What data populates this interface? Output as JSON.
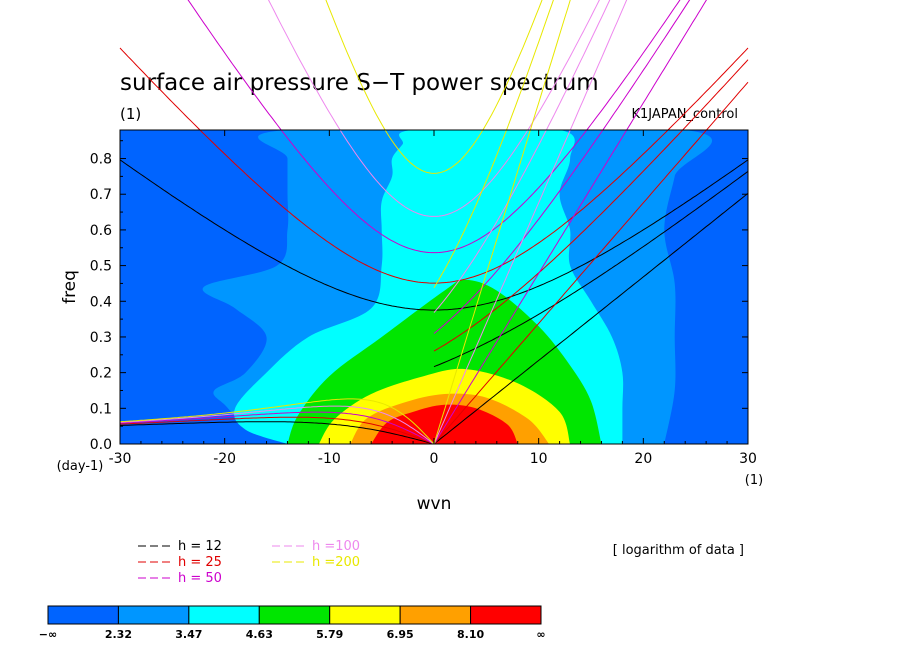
{
  "chart_data": {
    "type": "heatmap",
    "title": "surface air pressure S−T power spectrum",
    "subtitle_left": "(1)",
    "subtitle_right": "K1JAPAN_control",
    "xlabel": "wvn",
    "ylabel": "freq",
    "x_unit": "(1)",
    "y_unit": "(day-1)",
    "xlim": [
      -30,
      30
    ],
    "ylim": [
      0,
      0.88
    ],
    "xticks": [
      "-30",
      "-20",
      "-10",
      "0",
      "10",
      "20",
      "30"
    ],
    "yticks": [
      "0.0",
      "0.1",
      "0.2",
      "0.3",
      "0.4",
      "0.5",
      "0.6",
      "0.7",
      "0.8"
    ],
    "note": "[ logarithm of data ]",
    "dispersion_curves": [
      {
        "label": "h = 12",
        "h": 12,
        "color": "#000000"
      },
      {
        "label": "h = 25",
        "h": 25,
        "color": "#e00000"
      },
      {
        "label": "h = 50",
        "h": 50,
        "color": "#cc00cc"
      },
      {
        "label": "h =100",
        "h": 100,
        "color": "#ee88ee"
      },
      {
        "label": "h =200",
        "h": 200,
        "color": "#e8e800"
      }
    ],
    "colorbar": {
      "colors": [
        "#0064ff",
        "#0096ff",
        "#00ffff",
        "#00e600",
        "#ffff00",
        "#ffa000",
        "#ff0000"
      ],
      "labels": [
        "−∞",
        "2.32",
        "3.47",
        "4.63",
        "5.79",
        "6.95",
        "8.10",
        "∞"
      ]
    },
    "contour_levels": [
      {
        "level": "2.32",
        "color": "#0096ff",
        "points": [
          [
            -13,
            0
          ],
          [
            -18,
            0.06
          ],
          [
            -20,
            0.11
          ],
          [
            -21,
            0.15
          ],
          [
            -18,
            0.2
          ],
          [
            -16,
            0.3
          ],
          [
            -19,
            0.38
          ],
          [
            -22,
            0.44
          ],
          [
            -15,
            0.5
          ],
          [
            -14,
            0.6
          ],
          [
            -14,
            0.7
          ],
          [
            -14,
            0.8
          ],
          [
            -14,
            0.88
          ],
          [
            24,
            0.88
          ],
          [
            23,
            0.75
          ],
          [
            22,
            0.6
          ],
          [
            23,
            0.45
          ],
          [
            23,
            0.3
          ],
          [
            23,
            0.15
          ],
          [
            22,
            0
          ]
        ]
      },
      {
        "level": "3.47",
        "color": "#00ffff",
        "points": [
          [
            -14,
            0
          ],
          [
            -18,
            0.04
          ],
          [
            -19,
            0.1
          ],
          [
            -16,
            0.2
          ],
          [
            -12,
            0.3
          ],
          [
            -6,
            0.38
          ],
          [
            -5,
            0.5
          ],
          [
            -5,
            0.6
          ],
          [
            -5,
            0.68
          ],
          [
            -4,
            0.75
          ],
          [
            -4,
            0.8
          ],
          [
            -3,
            0.84
          ],
          [
            -2,
            0.88
          ],
          [
            12,
            0.88
          ],
          [
            13,
            0.8
          ],
          [
            12,
            0.7
          ],
          [
            13,
            0.6
          ],
          [
            13,
            0.5
          ],
          [
            15,
            0.4
          ],
          [
            17,
            0.3
          ],
          [
            18,
            0.2
          ],
          [
            18,
            0.1
          ],
          [
            18,
            0
          ]
        ]
      },
      {
        "level": "4.63",
        "color": "#00e600",
        "points": [
          [
            -14,
            0
          ],
          [
            -13,
            0.08
          ],
          [
            -10,
            0.19
          ],
          [
            -5,
            0.3
          ],
          [
            1,
            0.43
          ],
          [
            3,
            0.46
          ],
          [
            6,
            0.43
          ],
          [
            10,
            0.33
          ],
          [
            13,
            0.22
          ],
          [
            15,
            0.12
          ],
          [
            16,
            0
          ]
        ]
      },
      {
        "level": "5.79",
        "color": "#ffff00",
        "points": [
          [
            -11,
            0
          ],
          [
            -9.5,
            0.07
          ],
          [
            -6,
            0.14
          ],
          [
            -1,
            0.19
          ],
          [
            3,
            0.21
          ],
          [
            8,
            0.17
          ],
          [
            12,
            0.09
          ],
          [
            13,
            0
          ]
        ]
      },
      {
        "level": "6.95",
        "color": "#ffa000",
        "points": [
          [
            -8,
            0
          ],
          [
            -6.5,
            0.07
          ],
          [
            -3,
            0.115
          ],
          [
            1,
            0.14
          ],
          [
            5,
            0.13
          ],
          [
            9,
            0.07
          ],
          [
            11,
            0
          ]
        ]
      },
      {
        "level": "8.10",
        "color": "#ff0000",
        "points": [
          [
            -6,
            0
          ],
          [
            -4.5,
            0.06
          ],
          [
            -2,
            0.09
          ],
          [
            1,
            0.11
          ],
          [
            4,
            0.1
          ],
          [
            7,
            0.055
          ],
          [
            8,
            0
          ]
        ]
      }
    ]
  }
}
